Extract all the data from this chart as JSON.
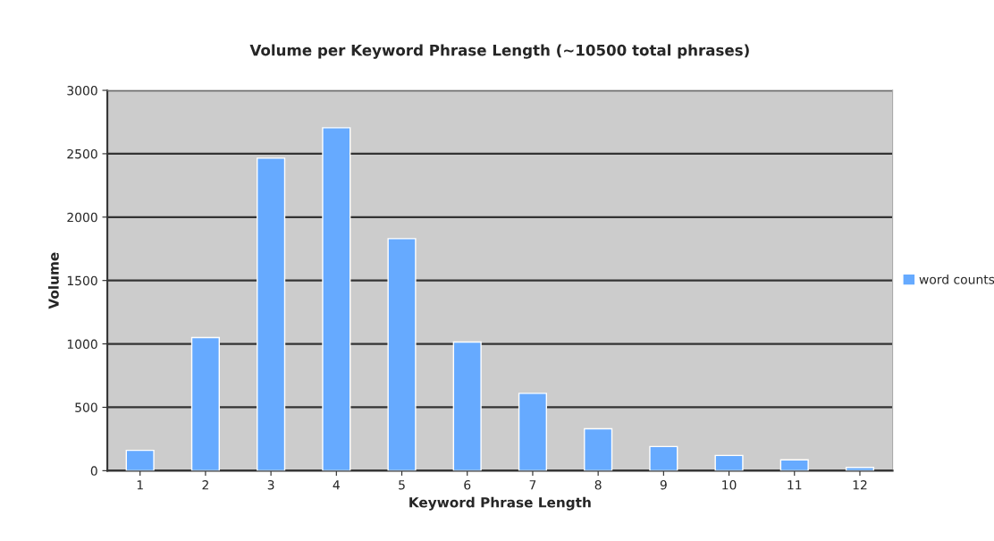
{
  "chart_data": {
    "type": "bar",
    "title": "Volume per Keyword Phrase Length (~10500 total phrases)",
    "xlabel": "Keyword Phrase Length",
    "ylabel": "Volume",
    "categories": [
      "1",
      "2",
      "3",
      "4",
      "5",
      "6",
      "7",
      "8",
      "9",
      "10",
      "11",
      "12"
    ],
    "series": [
      {
        "name": "word counts",
        "color": "#66aaff",
        "values": [
          160,
          1050,
          2465,
          2705,
          1830,
          1015,
          610,
          330,
          190,
          120,
          85,
          25
        ]
      }
    ],
    "ylim": [
      0,
      3000
    ],
    "yticks": [
      0,
      500,
      1000,
      1500,
      2000,
      2500,
      3000
    ],
    "grid": "y",
    "legend": "right"
  }
}
